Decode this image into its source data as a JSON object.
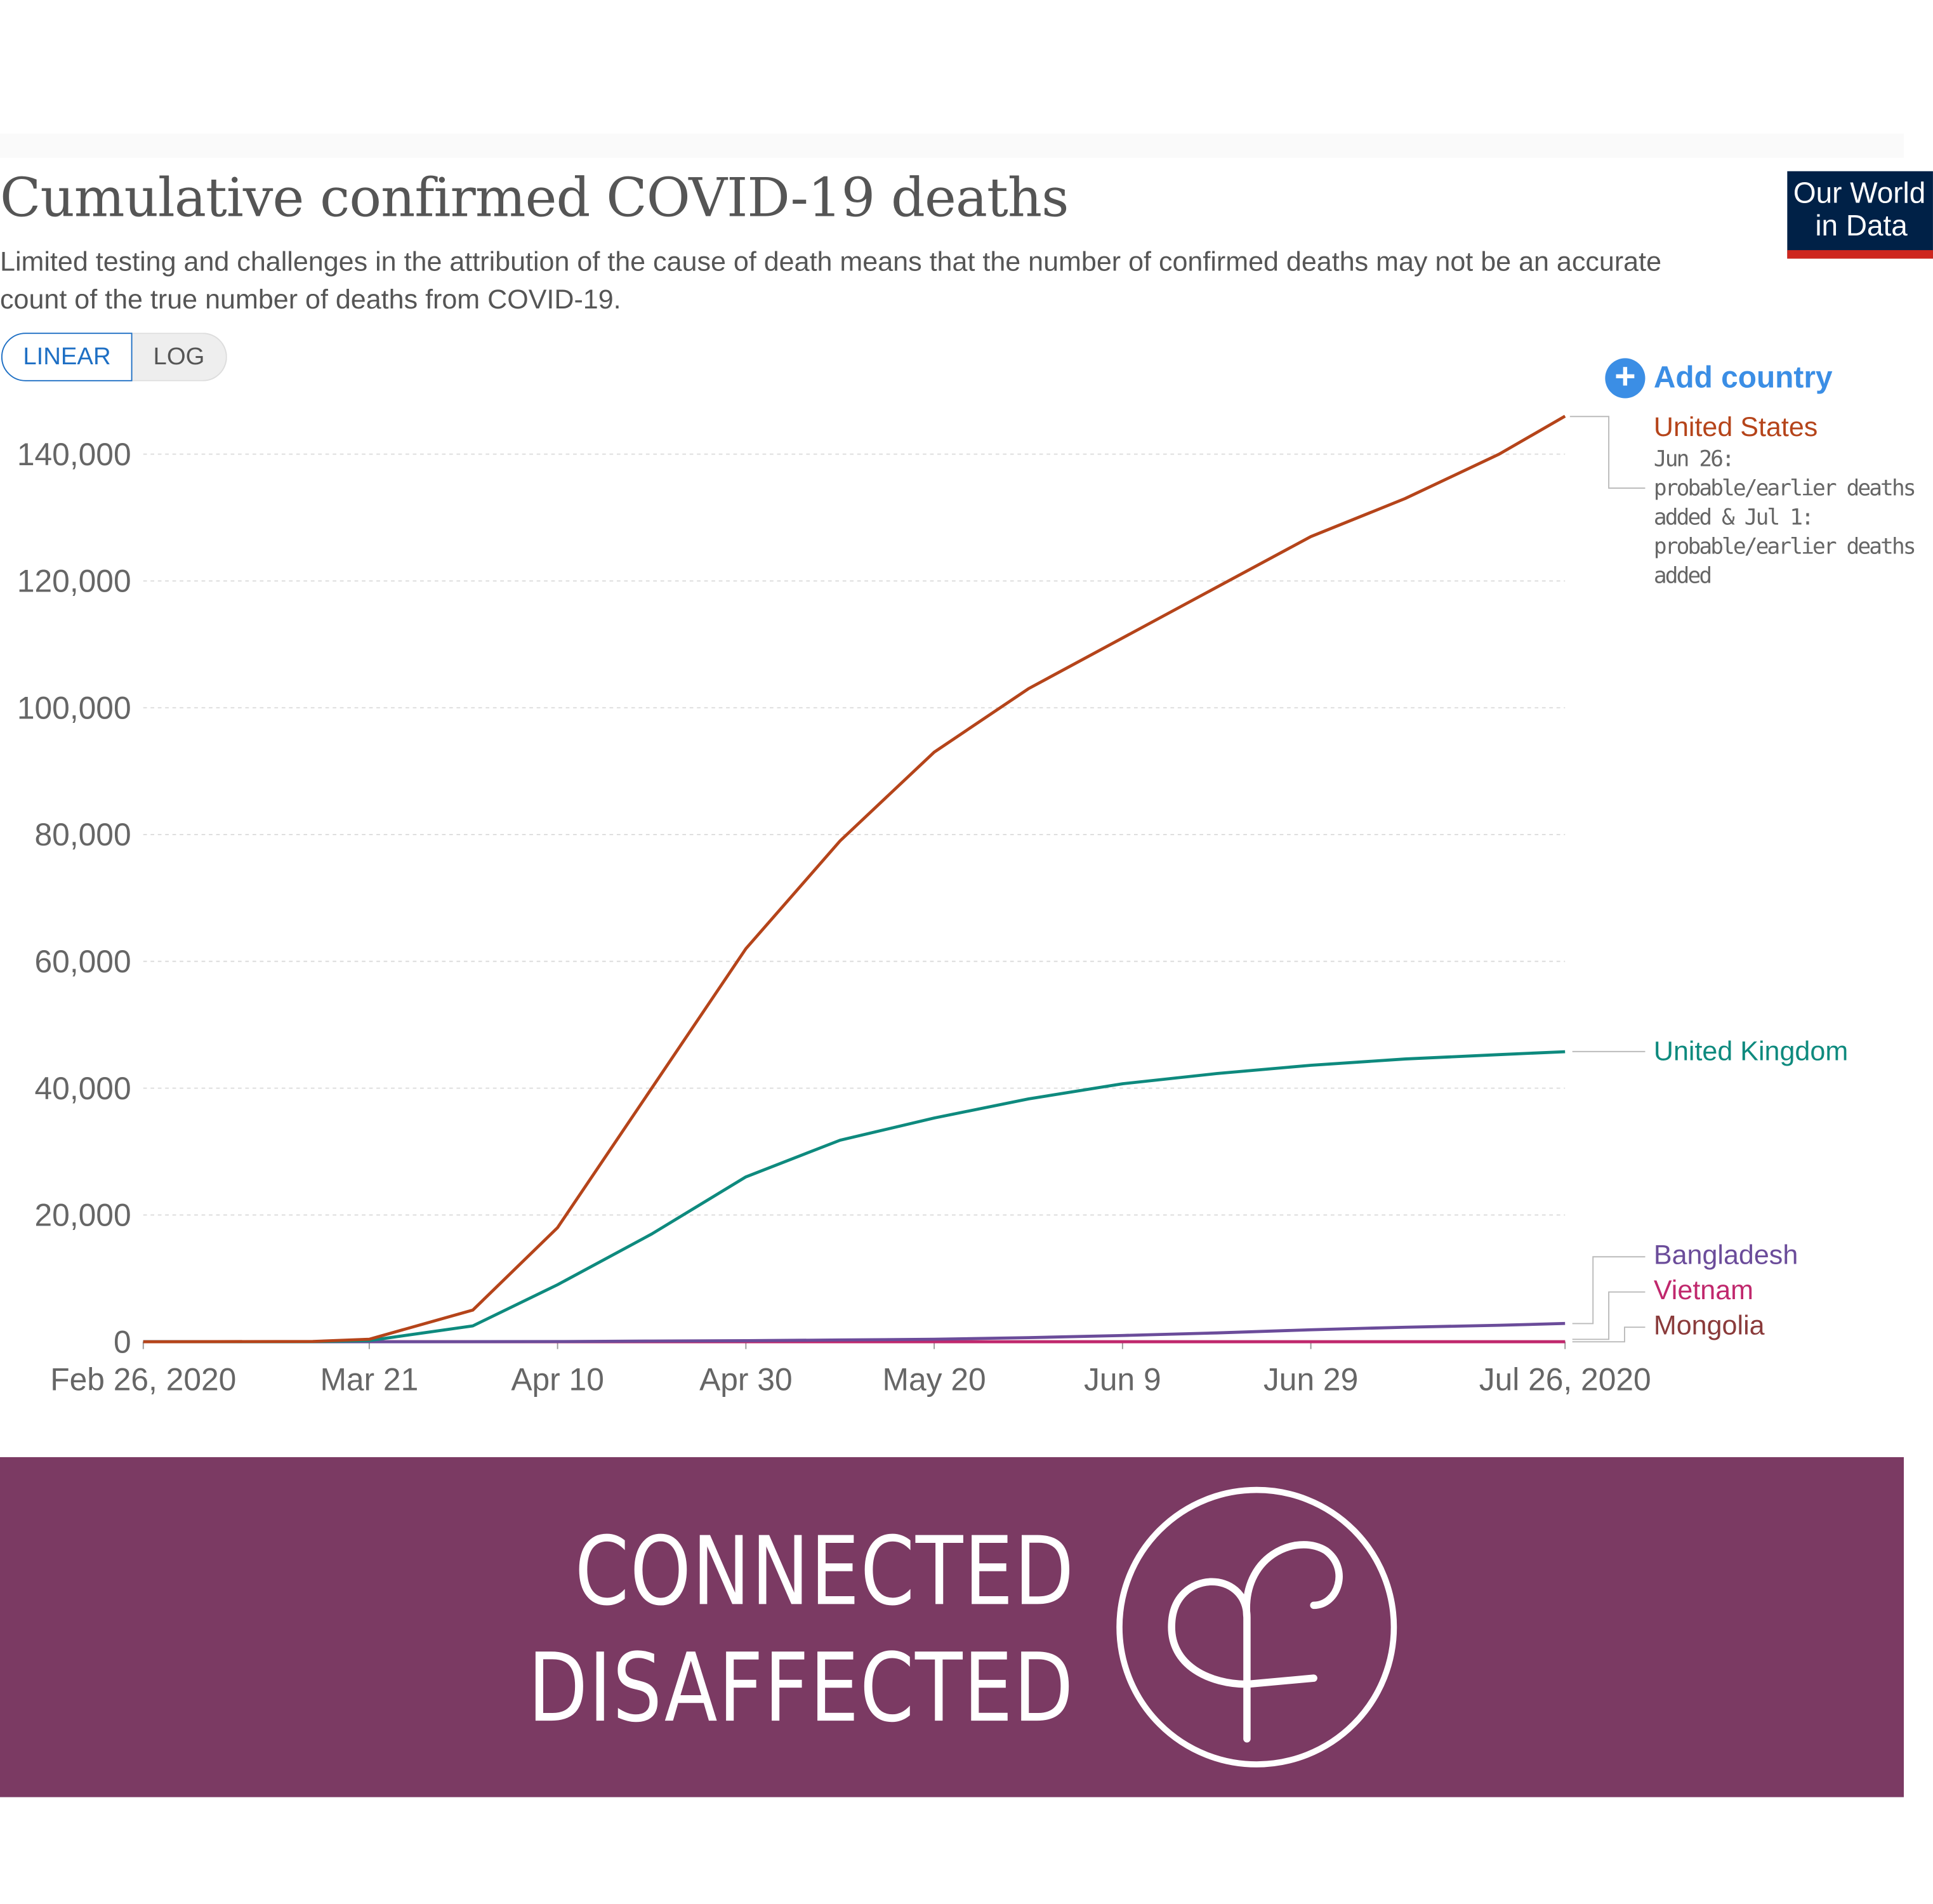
{
  "header": {
    "title": "Cumulative confirmed COVID-19 deaths",
    "subtitle": "Limited testing and challenges in the attribution of the cause of death means that the number of confirmed deaths may not be an accurate count of the true number of deaths from COVID-19.",
    "logo_line1": "Our World",
    "logo_line2": "in Data"
  },
  "controls": {
    "linear": "LINEAR",
    "log": "LOG",
    "add_country": "Add country",
    "add_icon": "plus-circle-icon"
  },
  "colors": {
    "us": "#b5441a",
    "uk": "#0e8a7e",
    "bangladesh": "#6b4c9a",
    "vietnam": "#c0286d",
    "mongolia": "#8a3b3b",
    "banner": "#7b3a63",
    "accent": "#3b8ee5"
  },
  "chart_data": {
    "type": "line",
    "title": "Cumulative confirmed COVID-19 deaths",
    "xlabel": "",
    "ylabel": "",
    "ylim": [
      0,
      140000
    ],
    "yticks": [
      0,
      20000,
      40000,
      60000,
      80000,
      100000,
      120000,
      140000
    ],
    "ytick_labels": [
      "0",
      "20,000",
      "40,000",
      "60,000",
      "80,000",
      "100,000",
      "120,000",
      "140,000"
    ],
    "xticks": [
      "2020-02-26",
      "2020-03-21",
      "2020-04-10",
      "2020-04-30",
      "2020-05-20",
      "2020-06-09",
      "2020-06-29",
      "2020-07-26"
    ],
    "xtick_labels": [
      "Feb 26, 2020",
      "Mar 21",
      "Apr 10",
      "Apr 30",
      "May 20",
      "Jun 9",
      "Jun 29",
      "Jul 26, 2020"
    ],
    "grid": true,
    "x": [
      "2020-02-26",
      "2020-03-15",
      "2020-03-21",
      "2020-04-01",
      "2020-04-10",
      "2020-04-20",
      "2020-04-30",
      "2020-05-10",
      "2020-05-20",
      "2020-05-30",
      "2020-06-09",
      "2020-06-19",
      "2020-06-29",
      "2020-07-09",
      "2020-07-19",
      "2020-07-26"
    ],
    "series": [
      {
        "name": "United States",
        "key": "us",
        "values": [
          0,
          60,
          400,
          5000,
          18000,
          40000,
          62000,
          79000,
          93000,
          103000,
          111000,
          119000,
          127000,
          133000,
          140000,
          146000
        ],
        "note": "Jun 26: probable/earlier deaths added & Jul 1: probable/earlier deaths added"
      },
      {
        "name": "United Kingdom",
        "key": "uk",
        "values": [
          0,
          20,
          200,
          2500,
          9000,
          17000,
          26000,
          31800,
          35300,
          38300,
          40700,
          42300,
          43600,
          44600,
          45300,
          45750
        ]
      },
      {
        "name": "Bangladesh",
        "key": "bangladesh",
        "values": [
          0,
          0,
          0,
          10,
          30,
          120,
          170,
          280,
          410,
          650,
          1000,
          1400,
          1900,
          2300,
          2600,
          2900
        ]
      },
      {
        "name": "Vietnam",
        "key": "vietnam",
        "values": [
          0,
          0,
          0,
          0,
          0,
          0,
          0,
          0,
          0,
          0,
          0,
          0,
          0,
          0,
          0,
          0
        ]
      },
      {
        "name": "Mongolia",
        "key": "mongolia",
        "values": [
          0,
          0,
          0,
          0,
          0,
          0,
          0,
          0,
          0,
          0,
          0,
          0,
          0,
          0,
          0,
          0
        ]
      }
    ]
  },
  "banner": {
    "line1": "CONNECTED",
    "line2": "DISAFFECTED",
    "logo_icon": "connected-disaffected-logo-icon"
  }
}
